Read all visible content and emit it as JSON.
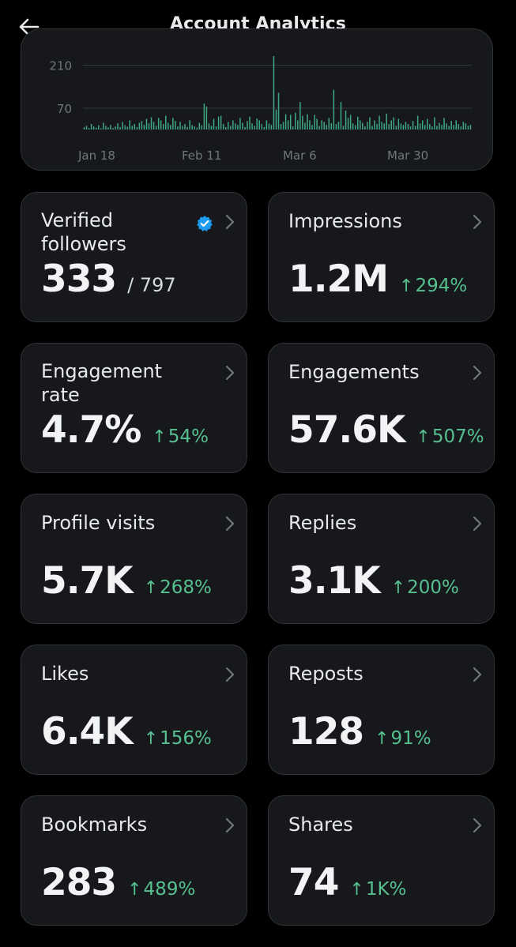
{
  "header": {
    "title": "Account Analytics",
    "back_icon": "back-arrow-icon"
  },
  "chart_data": {
    "type": "bar",
    "y_ticks": [
      "210",
      "70"
    ],
    "x_ticks": [
      "Jan 18",
      "Feb 11",
      "Mar 6",
      "Mar 30"
    ],
    "ylim": [
      0,
      240
    ],
    "grid": true,
    "bar_color": "#3fa883",
    "values": [
      8,
      12,
      5,
      18,
      10,
      6,
      14,
      4,
      22,
      12,
      7,
      15,
      5,
      10,
      20,
      8,
      25,
      14,
      9,
      30,
      12,
      18,
      8,
      22,
      28,
      15,
      35,
      20,
      40,
      25,
      12,
      38,
      30,
      18,
      45,
      22,
      15,
      38,
      28,
      10,
      25,
      12,
      18,
      8,
      30,
      14,
      10,
      6,
      22,
      14,
      85,
      75,
      20,
      12,
      35,
      10,
      42,
      45,
      18,
      8,
      25,
      12,
      30,
      20,
      15,
      38,
      22,
      8,
      28,
      42,
      20,
      12,
      36,
      30,
      18,
      8,
      30,
      20,
      15,
      240,
      65,
      120,
      18,
      25,
      50,
      30,
      48,
      10,
      55,
      30,
      90,
      45,
      22,
      50,
      30,
      15,
      48,
      35,
      12,
      30,
      25,
      15,
      38,
      20,
      130,
      18,
      25,
      90,
      12,
      62,
      38,
      48,
      20,
      14,
      42,
      30,
      22,
      10,
      25,
      40,
      12,
      30,
      18,
      45,
      25,
      20,
      52,
      18,
      30,
      40,
      12,
      35,
      20,
      15,
      25,
      18,
      10,
      28,
      12,
      45,
      20,
      30,
      15,
      35,
      18,
      10,
      40,
      12,
      22,
      15,
      38,
      20,
      12,
      28,
      15,
      30,
      18,
      10,
      25,
      20,
      12,
      15
    ]
  },
  "cards": [
    {
      "label": "Verified followers",
      "value": "333",
      "sub": "/ 797",
      "verified": true
    },
    {
      "label": "Impressions",
      "value": "1.2M",
      "change": "294%"
    },
    {
      "label": "Engagement rate",
      "value": "4.7%",
      "change": "54%"
    },
    {
      "label": "Engagements",
      "value": "57.6K",
      "change": "507%"
    },
    {
      "label": "Profile visits",
      "value": "5.7K",
      "change": "268%"
    },
    {
      "label": "Replies",
      "value": "3.1K",
      "change": "200%"
    },
    {
      "label": "Likes",
      "value": "6.4K",
      "change": "156%"
    },
    {
      "label": "Reposts",
      "value": "128",
      "change": "91%"
    },
    {
      "label": "Bookmarks",
      "value": "283",
      "change": "489%"
    },
    {
      "label": "Shares",
      "value": "74",
      "change": "1K%"
    }
  ],
  "colors": {
    "background": "#000000",
    "card": "#16181c",
    "border": "#2f3336",
    "positive": "#57c08f",
    "verified": "#1d9bf0"
  }
}
